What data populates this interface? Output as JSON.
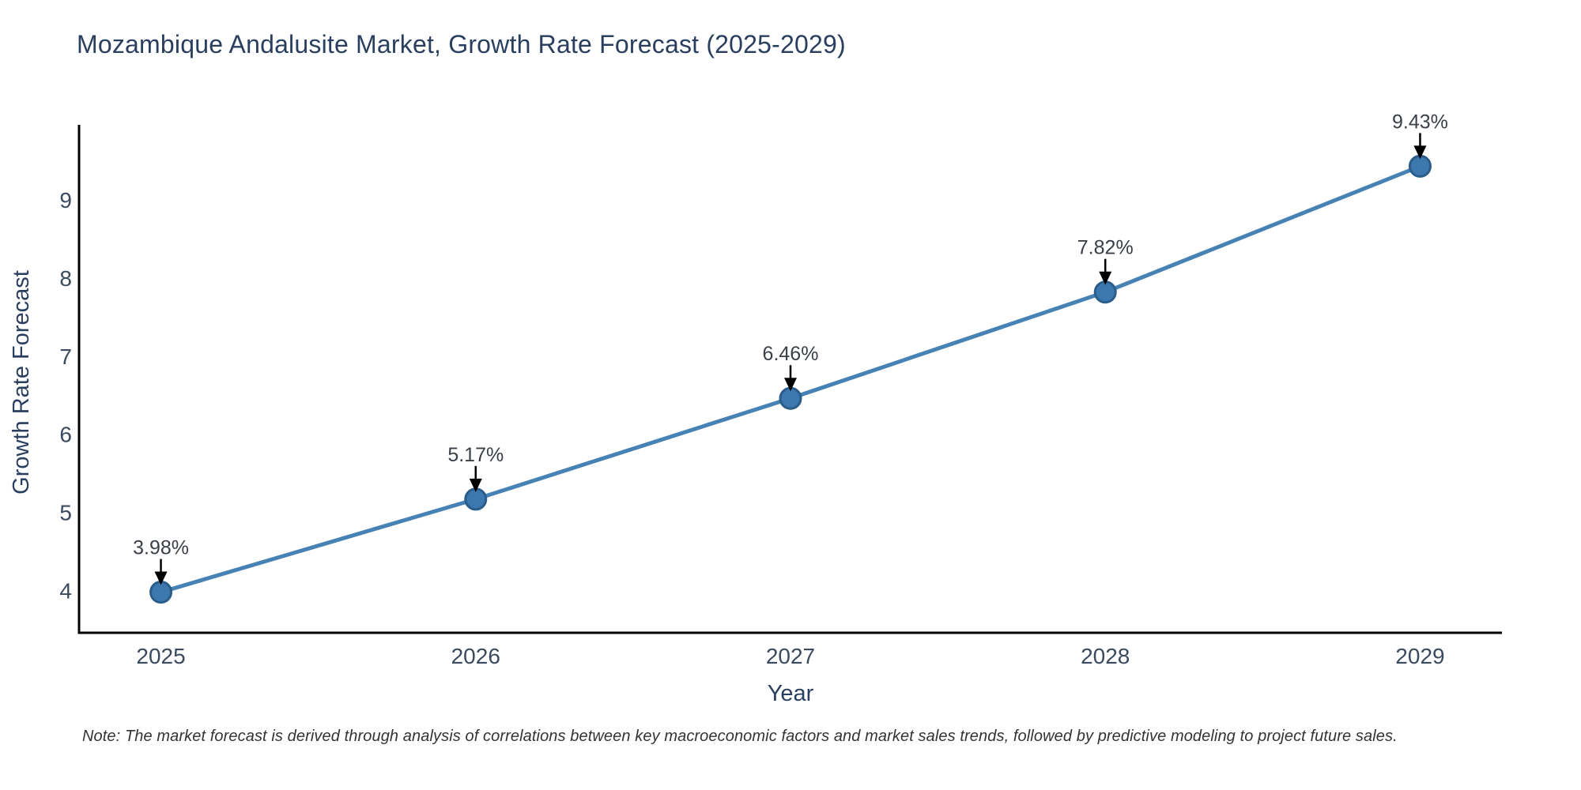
{
  "note": "Note: The market forecast is derived through analysis of correlations between key macroeconomic factors and market sales trends, followed by predictive modeling to project future sales.",
  "chart_data": {
    "type": "line",
    "title": "Mozambique Andalusite Market, Growth Rate Forecast (2025-2029)",
    "xlabel": "Year",
    "ylabel": "Growth Rate Forecast",
    "x": [
      2025,
      2026,
      2027,
      2028,
      2029
    ],
    "series": [
      {
        "name": "Growth Rate Forecast",
        "values": [
          3.98,
          5.17,
          6.46,
          7.82,
          9.43
        ]
      }
    ],
    "point_labels": [
      "3.98%",
      "5.17%",
      "6.46%",
      "7.82%",
      "9.43%"
    ],
    "xticks": [
      "2025",
      "2026",
      "2027",
      "2028",
      "2029"
    ],
    "yticks": [
      4,
      5,
      6,
      7,
      8,
      9
    ],
    "xlim": [
      2024.74,
      2029.26
    ],
    "ylim": [
      3.46,
      9.96
    ],
    "grid": false,
    "legend": false,
    "annotation_style": "value label with downward arrow above each data point",
    "colors": {
      "line": "#4682b4",
      "marker_fill": "#3c77ad",
      "marker_edge": "#2a5d8a",
      "axis_spine": "#000000",
      "tick_label": "#3b4a5f",
      "title": "#2a3f5f",
      "axis_label": "#2a3f5f",
      "annotation_text": "#3a3f46",
      "annotation_arrow": "#000000",
      "note_text": "#333333",
      "background": "#ffffff"
    }
  }
}
